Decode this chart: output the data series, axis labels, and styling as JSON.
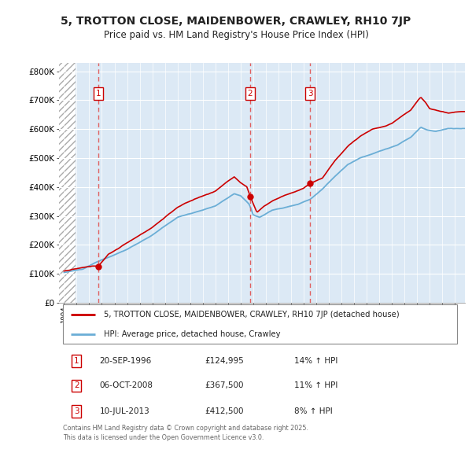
{
  "title_line1": "5, TROTTON CLOSE, MAIDENBOWER, CRAWLEY, RH10 7JP",
  "title_line2": "Price paid vs. HM Land Registry's House Price Index (HPI)",
  "ylim": [
    0,
    830000
  ],
  "yticks": [
    0,
    100000,
    200000,
    300000,
    400000,
    500000,
    600000,
    700000,
    800000
  ],
  "ytick_labels": [
    "£0",
    "£100K",
    "£200K",
    "£300K",
    "£400K",
    "£500K",
    "£600K",
    "£700K",
    "£800K"
  ],
  "sale_prices": [
    124995,
    367500,
    412500
  ],
  "sale_labels": [
    "1",
    "2",
    "3"
  ],
  "sale_pct": [
    "14% ↑ HPI",
    "11% ↑ HPI",
    "8% ↑ HPI"
  ],
  "sale_date_labels": [
    "20-SEP-1996",
    "06-OCT-2008",
    "10-JUL-2013"
  ],
  "sale_price_labels": [
    "£124,995",
    "£367,500",
    "£412,500"
  ],
  "sale_year_floats": [
    1996.72,
    2008.76,
    2013.52
  ],
  "hpi_color": "#6baed6",
  "price_color": "#cc0000",
  "dashed_line_color": "#e06060",
  "background_color": "#dce9f5",
  "grid_color": "#ffffff",
  "fig_bg": "#ffffff",
  "legend_label_red": "5, TROTTON CLOSE, MAIDENBOWER, CRAWLEY, RH10 7JP (detached house)",
  "legend_label_blue": "HPI: Average price, detached house, Crawley",
  "footer": "Contains HM Land Registry data © Crown copyright and database right 2025.\nThis data is licensed under the Open Government Licence v3.0.",
  "xstart": 1993.6,
  "xend": 2025.8
}
